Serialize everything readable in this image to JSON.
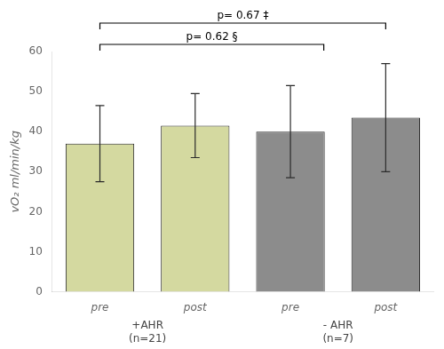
{
  "chart_data": {
    "type": "bar",
    "categories": [
      "pre",
      "post",
      "pre",
      "post"
    ],
    "values": [
      37.0,
      41.5,
      40.0,
      43.5
    ],
    "err_upper": [
      9.5,
      8.0,
      11.5,
      13.5
    ],
    "err_lower": [
      9.5,
      8.0,
      11.5,
      13.5
    ],
    "colors": [
      "#d4d9a0",
      "#d4d9a0",
      "#8c8c8c",
      "#8c8c8c"
    ],
    "ylabel": "vO₂ ml/min/kg",
    "group_labels": [
      "+AHR\n(n=21)",
      "- AHR\n(n=7)"
    ],
    "annotations": [
      "p= 0.62 §",
      "p= 0.67 ‡"
    ],
    "ylim": [
      0,
      60
    ],
    "yticks": [
      0,
      10,
      20,
      30,
      40,
      50,
      60
    ],
    "grid": false
  }
}
